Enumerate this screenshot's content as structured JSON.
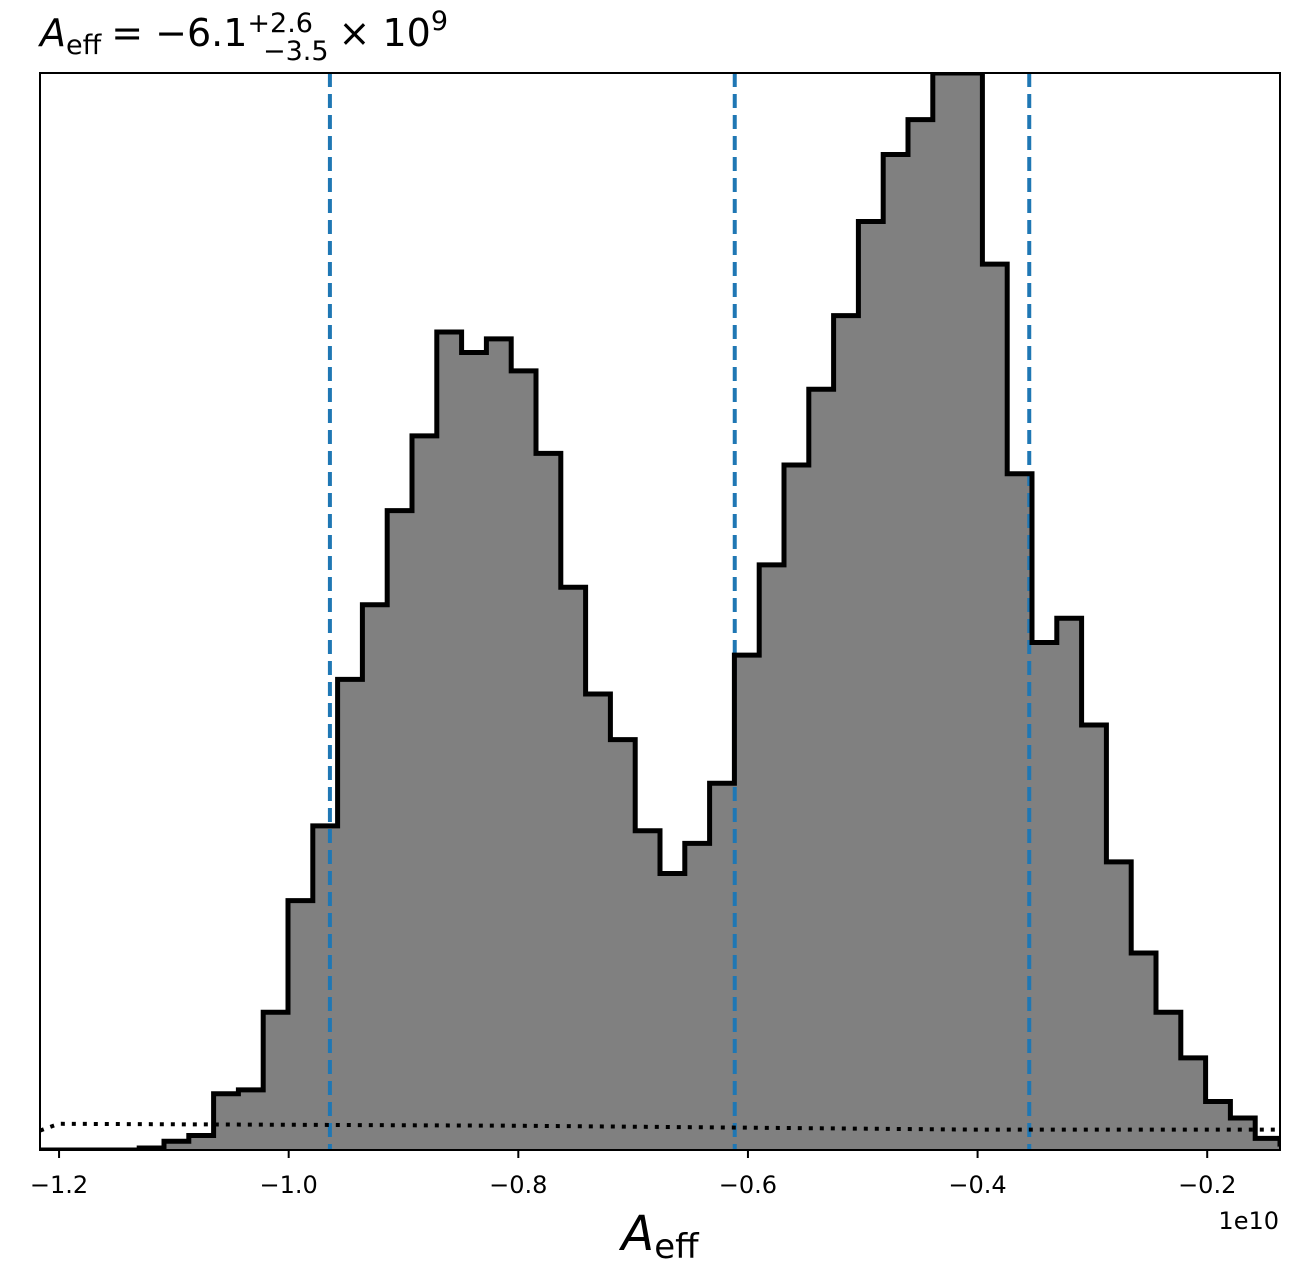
{
  "chart_data": {
    "type": "histogram",
    "title": {
      "var": "A",
      "var_sub": "eff",
      "median": "= −6.1",
      "err_plus": "+2.6",
      "err_minus": "−3.5",
      "mult": "× 10",
      "exp": "9"
    },
    "xlabel": {
      "var": "A",
      "sub": "eff"
    },
    "x_offset_label": "1e10",
    "xlim": [
      -1.2166,
      -0.1366
    ],
    "xticks": [
      {
        "value": -1.2,
        "label": "−1.2"
      },
      {
        "value": -1.0,
        "label": "−1.0"
      },
      {
        "value": -0.8,
        "label": "−0.8"
      },
      {
        "value": -0.6,
        "label": "−0.6"
      },
      {
        "value": -0.4,
        "label": "−0.4"
      },
      {
        "value": -0.2,
        "label": "−0.2"
      }
    ],
    "bin_edges_start": -1.2166,
    "bin_width": 0.0216,
    "counts": [
      0,
      0,
      0,
      0,
      2,
      9,
      15,
      58,
      62,
      142,
      257,
      334,
      485,
      562,
      659,
      736,
      843,
      822,
      836,
      803,
      718,
      580,
      470,
      423,
      329,
      285,
      316,
      378,
      510,
      603,
      706,
      784,
      860,
      957,
      1026,
      1062,
      1110,
      1110,
      913,
      697,
      523,
      548,
      438,
      297,
      203,
      142,
      95,
      50,
      33,
      12,
      6,
      6,
      4
    ],
    "ylim": [
      0,
      1110
    ],
    "credible_lines": [
      -0.9641,
      -0.6115,
      -0.355
    ],
    "prior_line": {
      "x": [
        -1.2166,
        -1.205,
        -1.2,
        -0.8,
        -0.4,
        -0.1366
      ],
      "y": [
        20,
        25,
        27,
        25,
        21,
        21
      ]
    },
    "colors": {
      "fill": "#808080",
      "outline": "#000000",
      "credible": "#1f77b4",
      "prior": "#000000"
    },
    "grid": false,
    "yticks_visible": false
  }
}
